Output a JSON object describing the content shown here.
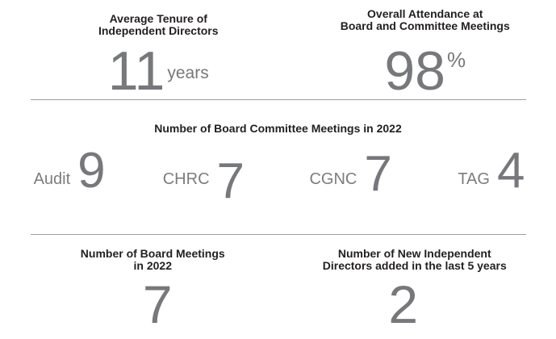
{
  "colors": {
    "heading_text": "#231f20",
    "stat_number": "#77787b",
    "stat_label": "#7c7d80",
    "divider_line": "#9d9fa2",
    "background": "#ffffff"
  },
  "top_section": {
    "average_tenure": {
      "heading_line1": "Average Tenure of",
      "heading_line2": "Independent Directors",
      "value": "11",
      "unit": "years"
    },
    "overall_attendance": {
      "heading_line1": "Overall Attendance at",
      "heading_line2": "Board and Committee Meetings",
      "value": "98",
      "unit": "%"
    }
  },
  "committee_section": {
    "title": "Number of Board Committee Meetings in 2022",
    "items": [
      {
        "label": "Audit",
        "value": "9"
      },
      {
        "label": "CHRC",
        "value": "7"
      },
      {
        "label": "CGNC",
        "value": "7"
      },
      {
        "label": "TAG",
        "value": "4"
      }
    ]
  },
  "bottom_section": {
    "board_meetings": {
      "heading_line1": "Number of Board Meetings",
      "heading_line2": "in 2022",
      "value": "7"
    },
    "new_directors": {
      "heading_line1": "Number of New Independent",
      "heading_line2": "Directors added in the last 5 years",
      "value": "2"
    }
  }
}
